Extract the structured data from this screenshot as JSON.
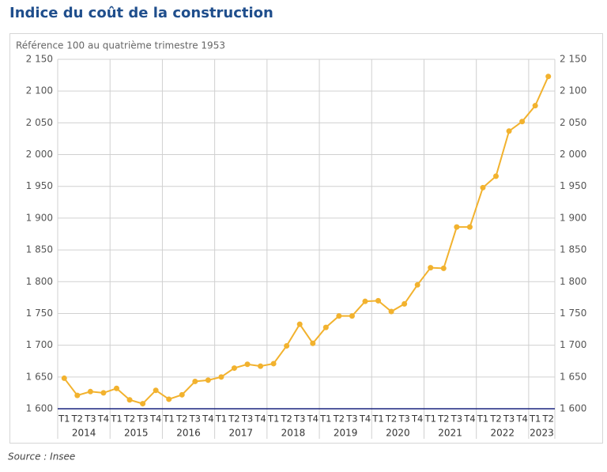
{
  "chart_data": {
    "type": "line",
    "title": "Indice du coût de la construction",
    "subtitle": "Référence 100 au quatrième trimestre 1953",
    "source": "Source : Insee",
    "categories": [
      "T1",
      "T2",
      "T3",
      "T4",
      "T1",
      "T2",
      "T3",
      "T4",
      "T1",
      "T2",
      "T3",
      "T4",
      "T1",
      "T2",
      "T3",
      "T4",
      "T1",
      "T2",
      "T3",
      "T4",
      "T1",
      "T2",
      "T3",
      "T4",
      "T1",
      "T2",
      "T3",
      "T4",
      "T1",
      "T2",
      "T3",
      "T4",
      "T1",
      "T2",
      "T3",
      "T4",
      "T1",
      "T2"
    ],
    "groups": [
      "2014",
      "2015",
      "2016",
      "2017",
      "2018",
      "2019",
      "2020",
      "2021",
      "2022",
      "2023"
    ],
    "values": [
      1648,
      1621,
      1627,
      1625,
      1632,
      1614,
      1608,
      1629,
      1615,
      1622,
      1643,
      1645,
      1650,
      1664,
      1670,
      1667,
      1671,
      1699,
      1733,
      1703,
      1728,
      1746,
      1746,
      1769,
      1770,
      1753,
      1765,
      1795,
      1822,
      1821,
      1886,
      1886,
      1948,
      1966,
      2037,
      2052,
      2077,
      2123
    ],
    "color": "#f2b22e",
    "ylim": [
      1600,
      2150
    ],
    "yticks": [
      {
        "value": 1600,
        "label": "1 600"
      },
      {
        "value": 1650,
        "label": "1 650"
      },
      {
        "value": 1700,
        "label": "1 700"
      },
      {
        "value": 1750,
        "label": "1 750"
      },
      {
        "value": 1800,
        "label": "1 800"
      },
      {
        "value": 1850,
        "label": "1 850"
      },
      {
        "value": 1900,
        "label": "1 900"
      },
      {
        "value": 1950,
        "label": "1 950"
      },
      {
        "value": 2000,
        "label": "2 000"
      },
      {
        "value": 2050,
        "label": "2 050"
      },
      {
        "value": 2100,
        "label": "2 100"
      },
      {
        "value": 2150,
        "label": "2 150"
      }
    ],
    "grid": true
  }
}
